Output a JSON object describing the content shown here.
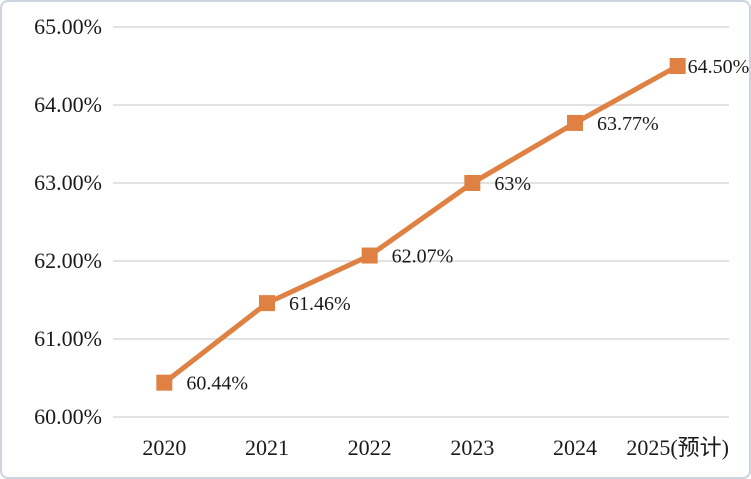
{
  "chart_data": {
    "type": "line",
    "title": "",
    "xlabel": "",
    "ylabel": "",
    "categories": [
      "2020",
      "2021",
      "2022",
      "2023",
      "2024",
      "2025(预计)"
    ],
    "series": [
      {
        "values": [
          60.44,
          61.46,
          62.07,
          63,
          63.77,
          64.5
        ],
        "point_labels": [
          "60.44%",
          "61.46%",
          "62.07%",
          "63%",
          "63.77%",
          "64.50%"
        ],
        "color": "#DF8142",
        "marker": "square",
        "line_width": 5
      }
    ],
    "ylim": [
      60,
      65
    ],
    "y_ticks": [
      60,
      61,
      62,
      63,
      64,
      65
    ],
    "y_tick_labels": [
      "60.00%",
      "61.00%",
      "62.00%",
      "63.00%",
      "64.00%",
      "65.00%"
    ],
    "grid": true,
    "gridline_color": "#D9D9D9",
    "text_color": "#1A1A1A",
    "background": "#FFFFFF",
    "frame_border_color": "#CCD4E0",
    "legend": "none"
  }
}
